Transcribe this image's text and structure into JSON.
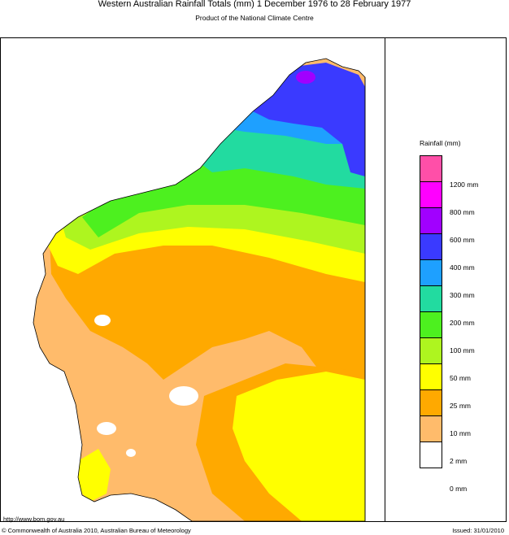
{
  "header": {
    "title": "Western Australian Rainfall Totals (mm) 1 December 1976 to 28 February 1977",
    "subtitle": "Product of the National Climate Centre"
  },
  "legend": {
    "title": "Rainfall (mm)",
    "bins": [
      {
        "color": "#ff4fa8"
      },
      {
        "color": "#ff00ff",
        "label": "1200 mm"
      },
      {
        "color": "#a100ff",
        "label": "800 mm"
      },
      {
        "color": "#3a3aff",
        "label": "600 mm"
      },
      {
        "color": "#1ea0ff",
        "label": "400 mm"
      },
      {
        "color": "#22dba0",
        "label": "300 mm"
      },
      {
        "color": "#4df01f",
        "label": "200 mm"
      },
      {
        "color": "#aef51f",
        "label": "100 mm"
      },
      {
        "color": "#ffff00",
        "label": "50 mm"
      },
      {
        "color": "#ffa900",
        "label": "25 mm"
      },
      {
        "color": "#ffbb6b",
        "label": "10 mm"
      },
      {
        "color": "#ffffff",
        "label": "2 mm"
      }
    ],
    "bottom_label": "0 mm"
  },
  "footer": {
    "url": "http://www.bom.gov.au",
    "copyright": "© Commonwealth of Australia 2010, Australian Bureau of Meteorology",
    "issued": "Issued: 31/01/2010"
  }
}
